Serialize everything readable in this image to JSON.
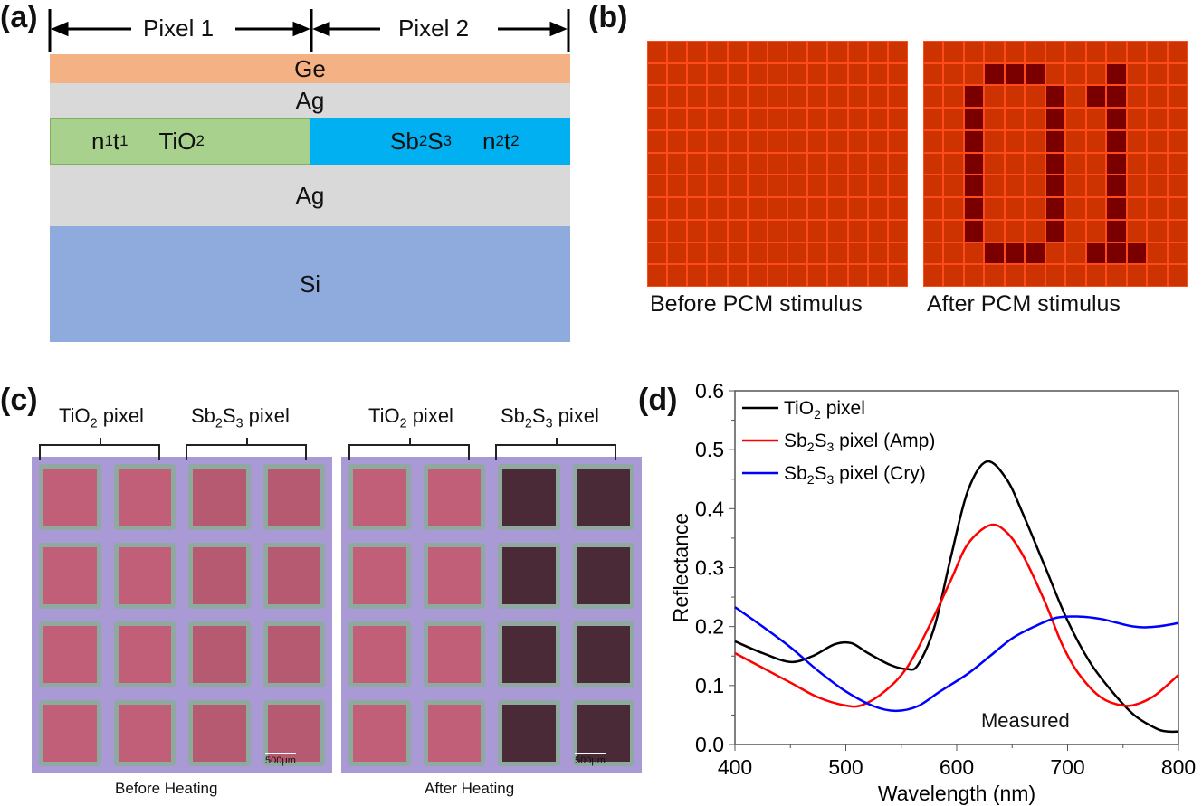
{
  "panel_labels": [
    "(a)",
    "(b)",
    "(c)",
    "(d)"
  ],
  "panel_a": {
    "pixel1": "Pixel 1",
    "pixel2": "Pixel 2",
    "layers": {
      "ge": "Ge",
      "ag_top": "Ag",
      "ag_bottom": "Ag",
      "si": "Si"
    },
    "left_layer": {
      "n": "n",
      "n_sub": "1",
      "t": "t",
      "t_sub": "1",
      "mat": "TiO",
      "mat_sub": "2"
    },
    "right_layer": {
      "m1": "Sb",
      "s1": "2",
      "m2": "S",
      "s2": "3",
      "n": "n",
      "n_sub": "2",
      "t": "t",
      "t_sub": "2"
    },
    "colors": {
      "ge": "#f4b183",
      "ag": "#d9d9d9",
      "tio2": "#a9d18e",
      "sb2s3": "#00b0f0",
      "si": "#8faadc"
    }
  },
  "panel_b": {
    "before_caption": "Before PCM stimulus",
    "after_caption": "After PCM stimulus",
    "grid_cols": 13,
    "grid_rows": 11,
    "after_on_cells": [
      [
        1,
        3
      ],
      [
        1,
        4
      ],
      [
        1,
        5
      ],
      [
        1,
        9
      ],
      [
        2,
        2
      ],
      [
        2,
        6
      ],
      [
        2,
        8
      ],
      [
        2,
        9
      ],
      [
        3,
        2
      ],
      [
        3,
        6
      ],
      [
        3,
        9
      ],
      [
        4,
        2
      ],
      [
        4,
        6
      ],
      [
        4,
        9
      ],
      [
        5,
        2
      ],
      [
        5,
        6
      ],
      [
        5,
        9
      ],
      [
        6,
        2
      ],
      [
        6,
        6
      ],
      [
        6,
        9
      ],
      [
        7,
        2
      ],
      [
        7,
        6
      ],
      [
        7,
        9
      ],
      [
        8,
        2
      ],
      [
        8,
        6
      ],
      [
        8,
        9
      ],
      [
        9,
        3
      ],
      [
        9,
        4
      ],
      [
        9,
        5
      ],
      [
        9,
        8
      ],
      [
        9,
        9
      ],
      [
        9,
        10
      ]
    ]
  },
  "panel_c": {
    "tio2": "TiO",
    "tio2_sub": "2",
    "sb": "Sb",
    "sb_sub": "2",
    "s": "S",
    "s_sub": "3",
    "pixel": " pixel",
    "scale": "500μm",
    "before": "Before Heating",
    "after": "After Heating"
  },
  "chart_data": {
    "type": "line",
    "xlabel": "Wavelength (nm)",
    "ylabel": "Reflectance",
    "xlim": [
      400,
      800
    ],
    "ylim": [
      0,
      0.6
    ],
    "xticks": [
      400,
      500,
      600,
      700,
      800
    ],
    "yticks": [
      "0.0",
      "0.1",
      "0.2",
      "0.3",
      "0.4",
      "0.5",
      "0.6"
    ],
    "annotation": "Measured",
    "legend_position": "top-left",
    "grid": false,
    "series": [
      {
        "name": "TiO2 pixel",
        "color": "#000000",
        "x": [
          400,
          425,
          450,
          470,
          490,
          505,
          520,
          540,
          555,
          565,
          580,
          595,
          610,
          627,
          645,
          660,
          680,
          700,
          720,
          740,
          760,
          780,
          790,
          800
        ],
        "y": [
          0.175,
          0.155,
          0.14,
          0.15,
          0.17,
          0.172,
          0.155,
          0.135,
          0.128,
          0.135,
          0.2,
          0.32,
          0.43,
          0.48,
          0.45,
          0.39,
          0.3,
          0.21,
          0.14,
          0.09,
          0.05,
          0.027,
          0.022,
          0.022
        ]
      },
      {
        "name": "Sb2S3 pixel (Amp)",
        "color": "#ff0000",
        "x": [
          400,
          425,
          450,
          475,
          500,
          515,
          535,
          555,
          575,
          595,
          610,
          630,
          645,
          660,
          680,
          695,
          710,
          730,
          750,
          765,
          780,
          800
        ],
        "y": [
          0.155,
          0.13,
          0.105,
          0.08,
          0.066,
          0.067,
          0.09,
          0.13,
          0.2,
          0.28,
          0.34,
          0.372,
          0.36,
          0.32,
          0.24,
          0.17,
          0.12,
          0.08,
          0.066,
          0.07,
          0.085,
          0.118
        ]
      },
      {
        "name": "Sb2S3 pixel (Cry)",
        "color": "#0000ff",
        "x": [
          400,
          425,
          450,
          475,
          500,
          525,
          545,
          565,
          585,
          610,
          630,
          650,
          670,
          690,
          710,
          730,
          760,
          780,
          800
        ],
        "y": [
          0.233,
          0.2,
          0.165,
          0.125,
          0.09,
          0.065,
          0.057,
          0.065,
          0.09,
          0.12,
          0.15,
          0.18,
          0.2,
          0.215,
          0.217,
          0.213,
          0.2,
          0.2,
          0.206
        ]
      }
    ],
    "legend": [
      {
        "a": "TiO",
        "a_sub": "2",
        "b": " pixel"
      },
      {
        "a": "Sb",
        "a_sub": "2",
        "b": "S",
        "b_sub": "3",
        "c": " pixel (Amp)"
      },
      {
        "a": "Sb",
        "a_sub": "2",
        "b": "S",
        "b_sub": "3",
        "c": " pixel (Cry)"
      }
    ]
  }
}
